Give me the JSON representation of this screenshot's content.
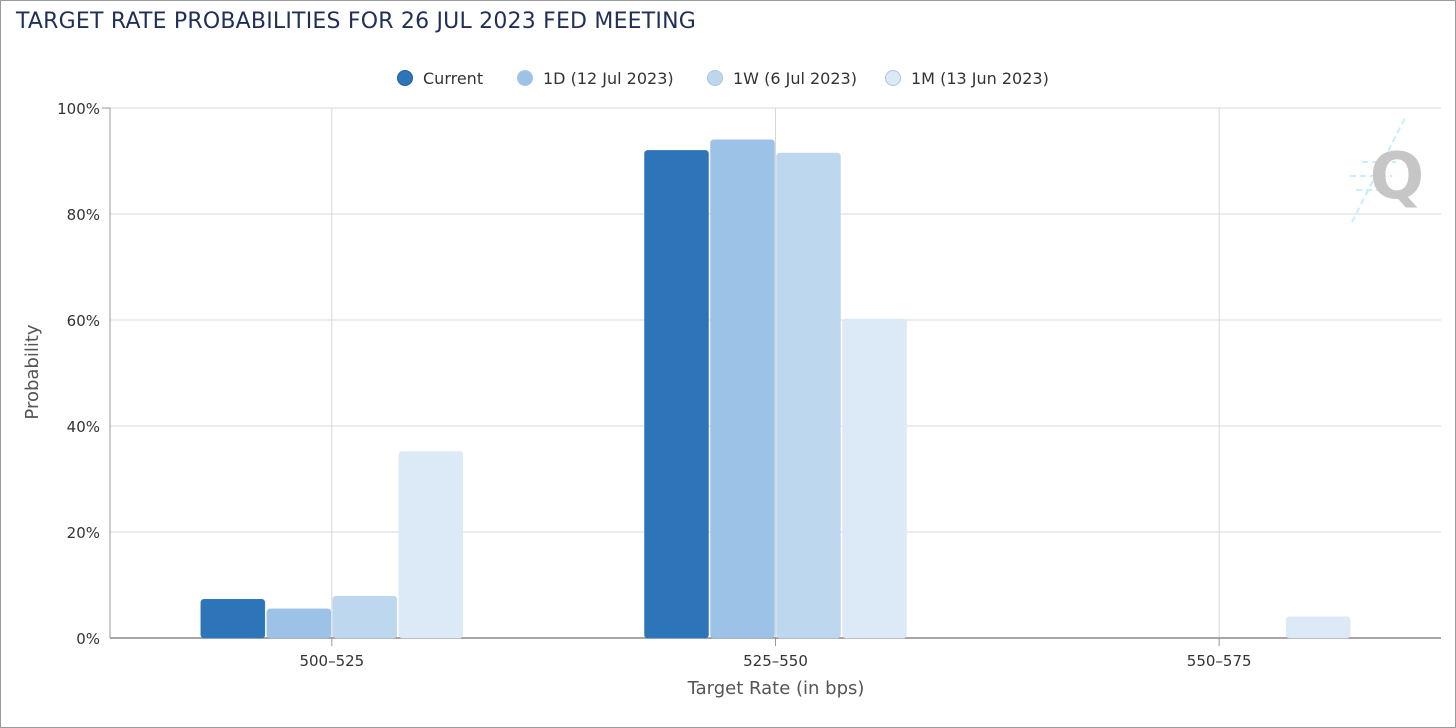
{
  "title": "TARGET RATE PROBABILITIES FOR 26 JUL 2023 FED MEETING",
  "watermark_letter": "Q",
  "chart_data": {
    "type": "bar",
    "title": "TARGET RATE PROBABILITIES FOR 26 JUL 2023 FED MEETING",
    "xlabel": "Target Rate (in bps)",
    "ylabel": "Probability",
    "ylim": [
      0,
      100
    ],
    "yticks": [
      "0%",
      "20%",
      "40%",
      "60%",
      "80%",
      "100%"
    ],
    "grid": true,
    "legend_position": "top-center",
    "categories": [
      "500–525",
      "525–550",
      "550–575"
    ],
    "series": [
      {
        "name": "Current",
        "color": "#2e74b8",
        "values": [
          7.3,
          92.0,
          0
        ]
      },
      {
        "name": "1D (12 Jul 2023)",
        "color": "#9dc2e7",
        "values": [
          5.5,
          94.0,
          0
        ]
      },
      {
        "name": "1W (6 Jul 2023)",
        "color": "#bdd7ef",
        "values": [
          7.9,
          91.5,
          0
        ]
      },
      {
        "name": "1M (13 Jun 2023)",
        "color": "#dce9f6",
        "values": [
          35.2,
          60.2,
          4.0
        ]
      }
    ]
  }
}
